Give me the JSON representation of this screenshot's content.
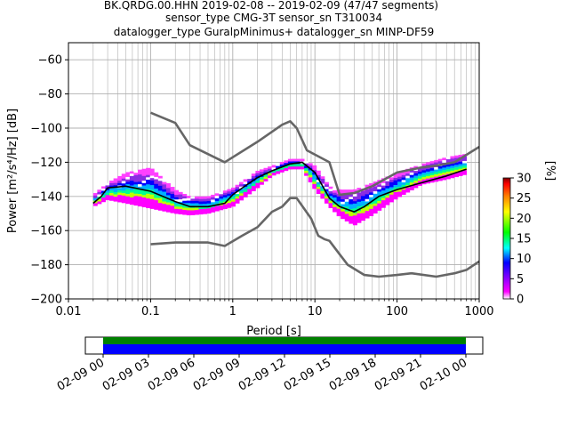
{
  "header": {
    "title_line1": "BK.QRDG.00.HHN   2019-02-08 -- 2019-02-09  (47/47 segments)",
    "title_line2": "sensor_type CMG-3T sensor_sn T310034",
    "title_line3": "datalogger_type GuralpMinimus+ datalogger_sn MINP-DF59"
  },
  "chart_data": {
    "type": "heatmap",
    "title": "BK.QRDG.00.HHN   2019-02-08 -- 2019-02-09  (47/47 segments)",
    "xlabel": "Period [s]",
    "ylabel": "Power [m²/s⁴/Hz] [dB]",
    "x_scale": "log",
    "xlim": [
      0.01,
      1000
    ],
    "ylim": [
      -200,
      -50
    ],
    "x_ticks": [
      0.01,
      0.1,
      1,
      10,
      100,
      1000
    ],
    "x_tick_labels": [
      "0.01",
      "0.1",
      "1",
      "10",
      "100",
      "1000"
    ],
    "y_ticks": [
      -200,
      -180,
      -160,
      -140,
      -120,
      -100,
      -80,
      -60
    ],
    "y_tick_labels": [
      "−200",
      "−180",
      "−160",
      "−140",
      "−120",
      "−100",
      "−80",
      "−60"
    ],
    "grid": true,
    "colorbar": {
      "label": "[%]",
      "range": [
        0,
        30
      ],
      "ticks": [
        0,
        5,
        10,
        15,
        20,
        25,
        30
      ],
      "tick_labels": [
        "0",
        "5",
        "10",
        "15",
        "20",
        "25",
        "30"
      ],
      "colors": [
        "#ffffff",
        "#ff00ff",
        "#0000ff",
        "#00ffff",
        "#00ff00",
        "#ffff00",
        "#ff7f00",
        "#ff0000",
        "#7f0000"
      ]
    },
    "ppsd_band": {
      "period": [
        0.02,
        0.03,
        0.05,
        0.1,
        0.2,
        0.3,
        0.5,
        1,
        2,
        3,
        5,
        7,
        10,
        15,
        20,
        30,
        50,
        100,
        200,
        400,
        700
      ],
      "upper_db": [
        -139,
        -132,
        -126,
        -123,
        -136,
        -140,
        -140,
        -135,
        -125,
        -122,
        -118,
        -118,
        -122,
        -134,
        -136,
        -136,
        -132,
        -126,
        -121,
        -117,
        -115
      ],
      "lower_db": [
        -146,
        -142,
        -144,
        -147,
        -150,
        -151,
        -150,
        -146,
        -135,
        -128,
        -124,
        -124,
        -136,
        -146,
        -152,
        -157,
        -151,
        -141,
        -133,
        -130,
        -127
      ]
    },
    "series": [
      {
        "period": [
          0.02,
          0.025,
          0.03,
          0.05,
          0.1,
          0.2,
          0.3,
          0.5,
          0.8,
          1,
          1.5,
          2,
          3,
          5,
          7,
          10,
          15,
          20,
          30,
          40,
          60,
          100,
          200,
          400,
          700
        ],
        "db": [
          -144,
          -140,
          -135,
          -134,
          -137,
          -143,
          -146,
          -146,
          -144,
          -139,
          -133,
          -129,
          -125,
          -121,
          -120,
          -126,
          -141,
          -146,
          -149,
          -146,
          -140,
          -136,
          -132,
          -128,
          -124
        ]
      },
      {
        "period": [
          0.1,
          0.2,
          0.3,
          0.8,
          2,
          4,
          5,
          6,
          8,
          15,
          20,
          30,
          50,
          100,
          200,
          300,
          500,
          1000
        ],
        "db": [
          -91,
          -97,
          -110,
          -120,
          -108,
          -98,
          -96,
          -100,
          -113,
          -120,
          -139,
          -138,
          -134,
          -126,
          -123,
          -122,
          -120,
          -111
        ]
      },
      {
        "period": [
          0.1,
          0.2,
          0.5,
          0.8,
          1.3,
          2,
          3,
          4,
          5,
          6,
          9,
          11,
          13,
          15,
          18,
          25,
          40,
          60,
          100,
          150,
          300,
          500,
          700,
          1000
        ],
        "db": [
          -168,
          -167,
          -167,
          -169,
          -163,
          -158,
          -149,
          -146,
          -141,
          -141,
          -153,
          -163,
          -165,
          -166,
          -171,
          -180,
          -186,
          -187,
          -186,
          -185,
          -187,
          -185,
          -183,
          -178
        ]
      }
    ],
    "timeline": {
      "tick_labels": [
        "02-09 00",
        "02-09 03",
        "02-09 06",
        "02-09 09",
        "02-09 12",
        "02-09 15",
        "02-09 18",
        "02-09 21",
        "02-10 00"
      ],
      "bars": [
        {
          "name": "",
          "color": "#008000"
        },
        {
          "name": "",
          "color": "#0000ff"
        }
      ]
    }
  }
}
